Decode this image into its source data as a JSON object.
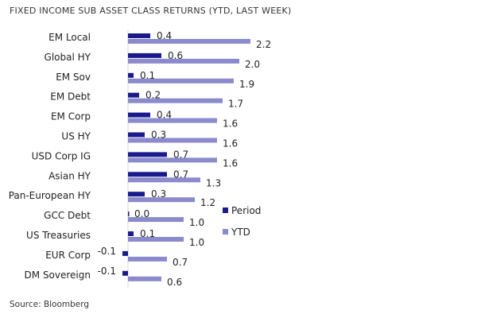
{
  "chart_data": {
    "type": "bar",
    "orientation": "horizontal",
    "title": "FIXED INCOME SUB ASSET CLASS RETURNS (YTD, LAST WEEK)",
    "source": "Source: Bloomberg",
    "categories": [
      "EM Local",
      "Global HY",
      "EM Sov",
      "EM Debt",
      "EM Corp",
      "US HY",
      "USD Corp IG",
      "Asian HY",
      "Pan-European HY",
      "GCC Debt",
      "US Treasuries",
      "EUR Corp",
      "DM Sovereign"
    ],
    "series": [
      {
        "name": "Period",
        "color": "#1a1a8c",
        "values": [
          0.4,
          0.6,
          0.1,
          0.2,
          0.4,
          0.3,
          0.7,
          0.7,
          0.3,
          0.0,
          0.1,
          -0.1,
          -0.1
        ],
        "labels": [
          "0.4",
          "0.6",
          "0.1",
          "0.2",
          "0.4",
          "0.3",
          "0.7",
          "0.7",
          "0.3",
          "0.0",
          "0.1",
          "-0.1",
          "-0.1"
        ]
      },
      {
        "name": "YTD",
        "color": "#8a8acc",
        "values": [
          2.2,
          2.0,
          1.9,
          1.7,
          1.6,
          1.6,
          1.6,
          1.3,
          1.2,
          1.0,
          1.0,
          0.7,
          0.6
        ],
        "labels": [
          "2.2",
          "2.0",
          "1.9",
          "1.7",
          "1.6",
          "1.6",
          "1.6",
          "1.3",
          "1.2",
          "1.0",
          "1.0",
          "0.7",
          "0.6"
        ]
      }
    ],
    "xlim": [
      -0.1,
      2.2
    ],
    "grid": false,
    "legend_position": "right"
  }
}
